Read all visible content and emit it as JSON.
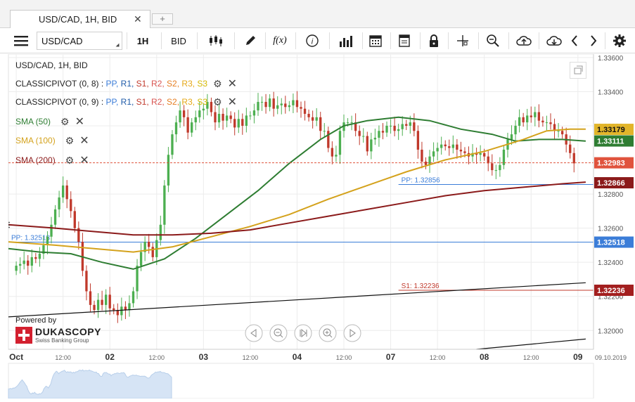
{
  "tabs": {
    "active": "USD/CAD, 1H, BID",
    "close": "✕",
    "add": "+"
  },
  "toolbar": {
    "menu_icon": "menu-icon",
    "symbol": "USD/CAD",
    "period": "1H",
    "side": "BID",
    "fx_label": "f(x)",
    "info_label": "i"
  },
  "legend": {
    "header": "USD/CAD, 1H, BID",
    "pivot1": {
      "name": "CLASSICPIVOT (0, 8)",
      "sep": ":"
    },
    "pivot2": {
      "name": "CLASSICPIVOT (0, 9)",
      "sep": ":"
    },
    "pivot_keys": [
      "PP,",
      "R1,",
      "S1,",
      "R2,",
      "S2,",
      "R3,",
      "S3"
    ],
    "pivot_key_colors": [
      "#3b7dd8",
      "#1e5aa8",
      "#c0392b",
      "#d9534f",
      "#e67e22",
      "#e6a817",
      "#d4b800"
    ],
    "sma50": "SMA (50)",
    "sma100": "SMA (100)",
    "sma200": "SMA (200)",
    "colors": {
      "sma50": "#2e7d32",
      "sma100": "#d4a21c",
      "sma200": "#8b1a1a"
    }
  },
  "watermark": {
    "powered": "Powered by",
    "brand": "DUKASCOPY",
    "tagline": "Swiss Banking Group"
  },
  "chart_data": {
    "type": "line",
    "title": "USD/CAD, 1H, BID",
    "ylim": [
      1.3189,
      1.3362
    ],
    "y_ticks": [
      1.32,
      1.322,
      1.324,
      1.326,
      1.328,
      1.332,
      1.334,
      1.336
    ],
    "y_tick_labels": [
      "1.32000",
      "1.32200",
      "1.32400",
      "1.32600",
      "1.32800",
      "1.33200",
      "1.33400",
      "1.33600"
    ],
    "x_ticks": [
      {
        "t": 0,
        "label": "Oct",
        "bold": true
      },
      {
        "t": 12,
        "label": "12:00",
        "bold": false
      },
      {
        "t": 24,
        "label": "02",
        "bold": true
      },
      {
        "t": 36,
        "label": "12:00",
        "bold": false
      },
      {
        "t": 48,
        "label": "03",
        "bold": true
      },
      {
        "t": 60,
        "label": "12:00",
        "bold": false
      },
      {
        "t": 72,
        "label": "04",
        "bold": true
      },
      {
        "t": 84,
        "label": "12:00",
        "bold": false
      },
      {
        "t": 96,
        "label": "07",
        "bold": true
      },
      {
        "t": 108,
        "label": "12:00",
        "bold": false
      },
      {
        "t": 120,
        "label": "08",
        "bold": true
      },
      {
        "t": 132,
        "label": "12:00",
        "bold": false
      },
      {
        "t": 144,
        "label": "09",
        "bold": true
      }
    ],
    "date_label": "09.10.2019",
    "x_range": [
      -2,
      148
    ],
    "candles_close": [
      1.3238,
      1.3239,
      1.3241,
      1.3238,
      1.3243,
      1.3242,
      1.3245,
      1.325,
      1.3255,
      1.3262,
      1.3271,
      1.3278,
      1.3285,
      1.3277,
      1.327,
      1.326,
      1.3252,
      1.3235,
      1.3223,
      1.3215,
      1.3212,
      1.3218,
      1.3215,
      1.3221,
      1.3213,
      1.3212,
      1.3209,
      1.3214,
      1.3212,
      1.3216,
      1.3223,
      1.3238,
      1.3246,
      1.3252,
      1.3249,
      1.3243,
      1.3253,
      1.3262,
      1.3285,
      1.3303,
      1.3315,
      1.3322,
      1.3329,
      1.3325,
      1.3316,
      1.3322,
      1.3325,
      1.3329,
      1.333,
      1.3334,
      1.3328,
      1.3322,
      1.3327,
      1.3323,
      1.3326,
      1.3324,
      1.3319,
      1.3324,
      1.332,
      1.3326,
      1.3326,
      1.3329,
      1.3334,
      1.3334,
      1.3331,
      1.3336,
      1.333,
      1.3332,
      1.3333,
      1.3331,
      1.3332,
      1.3335,
      1.3331,
      1.333,
      1.3327,
      1.3325,
      1.3323,
      1.3325,
      1.3317,
      1.3317,
      1.3307,
      1.3302,
      1.3303,
      1.3317,
      1.3322,
      1.3322,
      1.3322,
      1.3317,
      1.3314,
      1.3314,
      1.3305,
      1.3312,
      1.3313,
      1.3317,
      1.3316,
      1.332,
      1.332,
      1.3317,
      1.3318,
      1.3321,
      1.332,
      1.3322,
      1.3317,
      1.3306,
      1.3299,
      1.3297,
      1.3302,
      1.3305,
      1.3307,
      1.3309,
      1.3308,
      1.3307,
      1.3309,
      1.3306,
      1.3305,
      1.3304,
      1.3302,
      1.3304,
      1.3303,
      1.3304,
      1.3302,
      1.3298,
      1.3294,
      1.3294,
      1.3297,
      1.3306,
      1.3312,
      1.3315,
      1.332,
      1.3325,
      1.3322,
      1.3326,
      1.3325,
      1.3328,
      1.3323,
      1.3322,
      1.3322,
      1.3321,
      1.3317,
      1.3317,
      1.3315,
      1.3309,
      1.3304,
      1.3298
    ],
    "series": [
      {
        "name": "SMA (50)",
        "color": "#2e7d32",
        "points": [
          [
            -2,
            1.3248
          ],
          [
            6,
            1.3246
          ],
          [
            14,
            1.3245
          ],
          [
            22,
            1.324
          ],
          [
            30,
            1.3236
          ],
          [
            38,
            1.3242
          ],
          [
            46,
            1.3254
          ],
          [
            54,
            1.3268
          ],
          [
            62,
            1.3282
          ],
          [
            70,
            1.3298
          ],
          [
            78,
            1.3312
          ],
          [
            84,
            1.332
          ],
          [
            90,
            1.3323
          ],
          [
            98,
            1.3325
          ],
          [
            106,
            1.3323
          ],
          [
            114,
            1.3318
          ],
          [
            122,
            1.3315
          ],
          [
            128,
            1.3311
          ],
          [
            134,
            1.3312
          ],
          [
            140,
            1.3312
          ],
          [
            146,
            1.3311
          ]
        ]
      },
      {
        "name": "SMA (100)",
        "color": "#d4a21c",
        "points": [
          [
            -2,
            1.3252
          ],
          [
            10,
            1.325
          ],
          [
            20,
            1.3248
          ],
          [
            30,
            1.3246
          ],
          [
            40,
            1.3249
          ],
          [
            50,
            1.3255
          ],
          [
            60,
            1.3261
          ],
          [
            70,
            1.3268
          ],
          [
            80,
            1.3277
          ],
          [
            90,
            1.3285
          ],
          [
            100,
            1.3293
          ],
          [
            110,
            1.33
          ],
          [
            120,
            1.3305
          ],
          [
            130,
            1.3312
          ],
          [
            136,
            1.3317
          ],
          [
            142,
            1.3318
          ],
          [
            146,
            1.3318
          ]
        ]
      },
      {
        "name": "SMA (200)",
        "color": "#8b1a1a",
        "points": [
          [
            -2,
            1.3262
          ],
          [
            10,
            1.326
          ],
          [
            20,
            1.3258
          ],
          [
            30,
            1.3256
          ],
          [
            40,
            1.3256
          ],
          [
            50,
            1.3257
          ],
          [
            60,
            1.3259
          ],
          [
            70,
            1.3263
          ],
          [
            80,
            1.3267
          ],
          [
            90,
            1.3271
          ],
          [
            100,
            1.3275
          ],
          [
            110,
            1.3279
          ],
          [
            120,
            1.3282
          ],
          [
            130,
            1.3284
          ],
          [
            140,
            1.3286
          ],
          [
            146,
            1.3287
          ]
        ]
      },
      {
        "name": "Trendline 1",
        "color": "#111111",
        "points": [
          [
            -2,
            1.3208
          ],
          [
            146,
            1.3228
          ]
        ]
      },
      {
        "name": "Trendline 2",
        "color": "#111111",
        "points": [
          [
            118,
            1.3189
          ],
          [
            146,
            1.3195
          ]
        ]
      }
    ],
    "pivot_levels": [
      {
        "label": "PP: 1.32856",
        "value": 1.32856,
        "start": 98,
        "color": "#3b7dd8"
      },
      {
        "label": "PP: 1.32518",
        "value": 1.32518,
        "start": -2,
        "color": "#3b7dd8"
      },
      {
        "label": "S1: 1.32236",
        "value": 1.32236,
        "start": 98,
        "color": "#c0392b"
      }
    ],
    "price_badges": [
      {
        "label": "1.33179",
        "value": 1.33179,
        "bg": "#e2b52a",
        "fg": "#111111"
      },
      {
        "label": "1.33111",
        "value": 1.33111,
        "bg": "#2e7d32",
        "fg": "#ffffff"
      },
      {
        "label": "1.32983",
        "value": 1.32983,
        "bg": "#e0533d",
        "fg": "#ffffff"
      },
      {
        "label": "1.32866",
        "value": 1.32866,
        "bg": "#8b1a1a",
        "fg": "#ffffff"
      },
      {
        "label": "1.32518",
        "value": 1.32518,
        "bg": "#3b7dd8",
        "fg": "#ffffff"
      },
      {
        "label": "1.32236",
        "value": 1.32236,
        "bg": "#a31f1f",
        "fg": "#ffffff"
      }
    ],
    "current_price": 1.32983,
    "grid": true,
    "legend_position": "top-left"
  }
}
